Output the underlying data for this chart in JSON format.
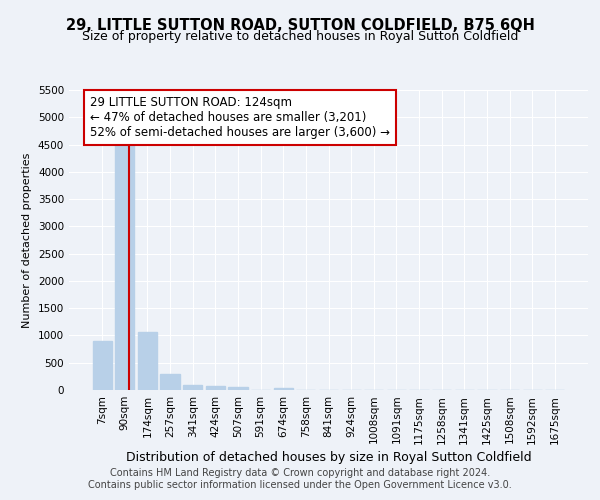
{
  "title": "29, LITTLE SUTTON ROAD, SUTTON COLDFIELD, B75 6QH",
  "subtitle": "Size of property relative to detached houses in Royal Sutton Coldfield",
  "xlabel": "Distribution of detached houses by size in Royal Sutton Coldfield",
  "ylabel": "Number of detached properties",
  "categories": [
    "7sqm",
    "90sqm",
    "174sqm",
    "257sqm",
    "341sqm",
    "424sqm",
    "507sqm",
    "591sqm",
    "674sqm",
    "758sqm",
    "841sqm",
    "924sqm",
    "1008sqm",
    "1091sqm",
    "1175sqm",
    "1258sqm",
    "1341sqm",
    "1425sqm",
    "1508sqm",
    "1592sqm",
    "1675sqm"
  ],
  "values": [
    900,
    4560,
    1070,
    300,
    100,
    75,
    50,
    0,
    30,
    0,
    0,
    0,
    0,
    0,
    0,
    0,
    0,
    0,
    0,
    0,
    0
  ],
  "bar_color": "#b8d0e8",
  "vline_x": 1.18,
  "vline_color": "#cc0000",
  "annotation_text": "29 LITTLE SUTTON ROAD: 124sqm\n← 47% of detached houses are smaller (3,201)\n52% of semi-detached houses are larger (3,600) →",
  "annotation_box_color": "#cc0000",
  "ylim": [
    0,
    5500
  ],
  "yticks": [
    0,
    500,
    1000,
    1500,
    2000,
    2500,
    3000,
    3500,
    4000,
    4500,
    5000,
    5500
  ],
  "footer_line1": "Contains HM Land Registry data © Crown copyright and database right 2024.",
  "footer_line2": "Contains public sector information licensed under the Open Government Licence v3.0.",
  "bg_color": "#eef2f8",
  "grid_color": "#ffffff",
  "title_fontsize": 10.5,
  "subtitle_fontsize": 9,
  "ylabel_fontsize": 8,
  "xlabel_fontsize": 9,
  "tick_fontsize": 7.5,
  "footer_fontsize": 7,
  "ann_fontsize": 8.5
}
